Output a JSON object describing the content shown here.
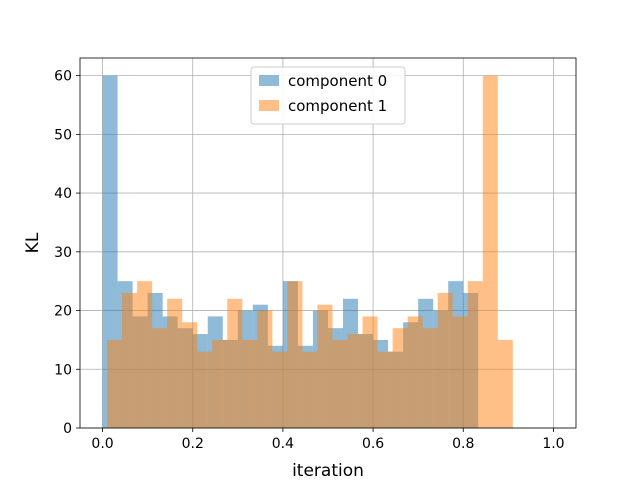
{
  "chart_data": {
    "type": "bar",
    "title": "",
    "xlabel": "iteration",
    "ylabel": "KL",
    "xlim": [
      -0.05,
      1.05
    ],
    "ylim": [
      0,
      63
    ],
    "xticks": [
      0.0,
      0.2,
      0.4,
      0.6,
      0.8,
      1.0
    ],
    "xtick_labels": [
      "0.0",
      "0.2",
      "0.4",
      "0.6",
      "0.8",
      "1.0"
    ],
    "yticks": [
      0,
      10,
      20,
      30,
      40,
      50,
      60
    ],
    "ytick_labels": [
      "0",
      "10",
      "20",
      "30",
      "40",
      "50",
      "60"
    ],
    "grid": true,
    "legend_position": "top-center",
    "series": [
      {
        "name": "component 0",
        "color": "#1f77b4",
        "alpha": 0.5,
        "x_start": 0.0,
        "bin_width": 0.03333,
        "values": [
          60,
          25,
          19,
          23,
          19,
          17,
          16,
          19,
          15,
          20,
          21,
          14,
          25,
          14,
          20,
          17,
          22,
          16,
          15,
          13,
          18,
          22,
          20,
          25,
          23
        ]
      },
      {
        "name": "component 1",
        "color": "#ff7f0e",
        "alpha": 0.5,
        "x_start": 0.01,
        "bin_width": 0.03333,
        "values": [
          15,
          23,
          25,
          17,
          22,
          18,
          13,
          15,
          22,
          15,
          20,
          13,
          25,
          13,
          21,
          15,
          16,
          19,
          13,
          17,
          19,
          17,
          23,
          19,
          25,
          60,
          15
        ]
      }
    ]
  }
}
